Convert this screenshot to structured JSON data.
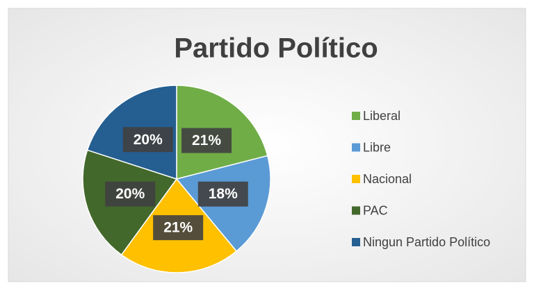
{
  "chart_data": {
    "type": "pie",
    "title": "Partido Político",
    "categories": [
      "Liberal",
      "Libre",
      "Nacional",
      "PAC",
      "Ningun Partido Político"
    ],
    "values": [
      21,
      18,
      21,
      20,
      20
    ],
    "value_labels": [
      "21%",
      "18%",
      "21%",
      "20%",
      "20%"
    ],
    "colors": [
      "#70ad47",
      "#5b9bd5",
      "#ffc000",
      "#43682b",
      "#255e91"
    ],
    "legend": "right"
  }
}
